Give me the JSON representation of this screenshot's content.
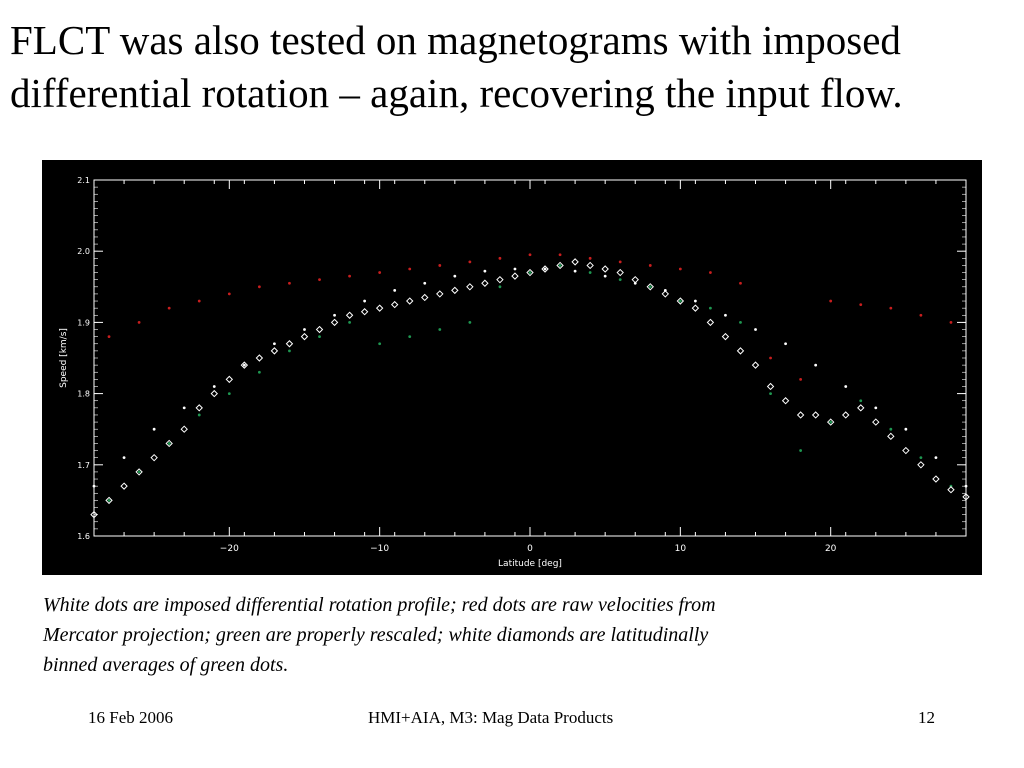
{
  "slide": {
    "title_lines": [
      "FLCT was also tested on magnetograms with imposed",
      "differential rotation – again, recovering the input flow."
    ],
    "caption_lines": [
      "White dots are imposed differential rotation profile; red dots are raw velocities from",
      "Mercator projection; green are properly rescaled;  white diamonds are latitudinally",
      "binned averages of green dots."
    ],
    "footer": {
      "date": "16 Feb 2006",
      "center": "HMI+AIA, M3: Mag Data Products",
      "page": "12"
    }
  },
  "colors": {
    "background": "#000000",
    "axes": "#ffffff",
    "imposed_profile": "#ffffff",
    "raw_velocity": "#c81e1e",
    "rescaled": "#1e9650",
    "binned_average": "#ffffff"
  },
  "chart_data": {
    "type": "scatter",
    "xlabel": "Latitude [deg]",
    "ylabel": "Speed [km/s]",
    "xlim": [
      -29,
      29
    ],
    "ylim": [
      1.6,
      2.1
    ],
    "xticks": [
      "−20",
      "−10",
      "0",
      "10",
      "20"
    ],
    "xtick_values": [
      -20,
      -10,
      0,
      10,
      20
    ],
    "yticks": [
      "1.6",
      "1.7",
      "1.8",
      "1.9",
      "2.0",
      "2.1"
    ],
    "ytick_values": [
      1.6,
      1.7,
      1.8,
      1.9,
      2.0,
      2.1
    ],
    "grid": false,
    "legend": "none",
    "series": [
      {
        "kind": "imposed_profile",
        "marker": "dot",
        "x": [
          -29,
          -27,
          -25,
          -23,
          -21,
          -19,
          -17,
          -15,
          -13,
          -11,
          -9,
          -7,
          -5,
          -3,
          -1,
          1,
          3,
          5,
          7,
          9,
          11,
          13,
          15,
          17,
          19,
          21,
          23,
          25,
          27,
          29
        ],
        "y": [
          1.67,
          1.71,
          1.75,
          1.78,
          1.81,
          1.84,
          1.87,
          1.89,
          1.91,
          1.93,
          1.945,
          1.955,
          1.965,
          1.972,
          1.975,
          1.975,
          1.972,
          1.965,
          1.955,
          1.945,
          1.93,
          1.91,
          1.89,
          1.87,
          1.84,
          1.81,
          1.78,
          1.75,
          1.71,
          1.67
        ]
      },
      {
        "kind": "raw_velocity",
        "marker": "dot",
        "x": [
          -28,
          -26,
          -24,
          -22,
          -20,
          -18,
          -16,
          -14,
          -12,
          -10,
          -8,
          -6,
          -4,
          -2,
          0,
          2,
          4,
          6,
          8,
          10,
          12,
          14,
          16,
          18,
          20,
          22,
          24,
          26,
          28
        ],
        "y": [
          1.88,
          1.9,
          1.92,
          1.93,
          1.94,
          1.95,
          1.955,
          1.96,
          1.965,
          1.97,
          1.975,
          1.98,
          1.985,
          1.99,
          1.995,
          1.995,
          1.99,
          1.985,
          1.98,
          1.975,
          1.97,
          1.955,
          1.85,
          1.82,
          1.93,
          1.925,
          1.92,
          1.91,
          1.9
        ]
      },
      {
        "kind": "rescaled",
        "marker": "dot",
        "x": [
          -28,
          -26,
          -24,
          -22,
          -20,
          -18,
          -16,
          -14,
          -12,
          -10,
          -8,
          -6,
          -4,
          -2,
          0,
          2,
          4,
          6,
          8,
          10,
          12,
          14,
          16,
          18,
          20,
          22,
          24,
          26,
          28
        ],
        "y": [
          1.65,
          1.69,
          1.73,
          1.77,
          1.8,
          1.83,
          1.86,
          1.88,
          1.9,
          1.87,
          1.88,
          1.89,
          1.9,
          1.95,
          1.97,
          1.98,
          1.97,
          1.96,
          1.95,
          1.93,
          1.92,
          1.9,
          1.8,
          1.72,
          1.76,
          1.79,
          1.75,
          1.71,
          1.67
        ]
      },
      {
        "kind": "binned_average",
        "marker": "diamond",
        "x": [
          -29,
          -28,
          -27,
          -26,
          -25,
          -24,
          -23,
          -22,
          -21,
          -20,
          -19,
          -18,
          -17,
          -16,
          -15,
          -14,
          -13,
          -12,
          -11,
          -10,
          -9,
          -8,
          -7,
          -6,
          -5,
          -4,
          -3,
          -2,
          -1,
          0,
          1,
          2,
          3,
          4,
          5,
          6,
          7,
          8,
          9,
          10,
          11,
          12,
          13,
          14,
          15,
          16,
          17,
          18,
          19,
          20,
          21,
          22,
          23,
          24,
          25,
          26,
          27,
          28,
          29
        ],
        "y": [
          1.63,
          1.65,
          1.67,
          1.69,
          1.71,
          1.73,
          1.75,
          1.78,
          1.8,
          1.82,
          1.84,
          1.85,
          1.86,
          1.87,
          1.88,
          1.89,
          1.9,
          1.91,
          1.915,
          1.92,
          1.925,
          1.93,
          1.935,
          1.94,
          1.945,
          1.95,
          1.955,
          1.96,
          1.965,
          1.97,
          1.975,
          1.98,
          1.985,
          1.98,
          1.975,
          1.97,
          1.96,
          1.95,
          1.94,
          1.93,
          1.92,
          1.9,
          1.88,
          1.86,
          1.84,
          1.81,
          1.79,
          1.77,
          1.77,
          1.76,
          1.77,
          1.78,
          1.76,
          1.74,
          1.72,
          1.7,
          1.68,
          1.665,
          1.655
        ]
      }
    ]
  }
}
